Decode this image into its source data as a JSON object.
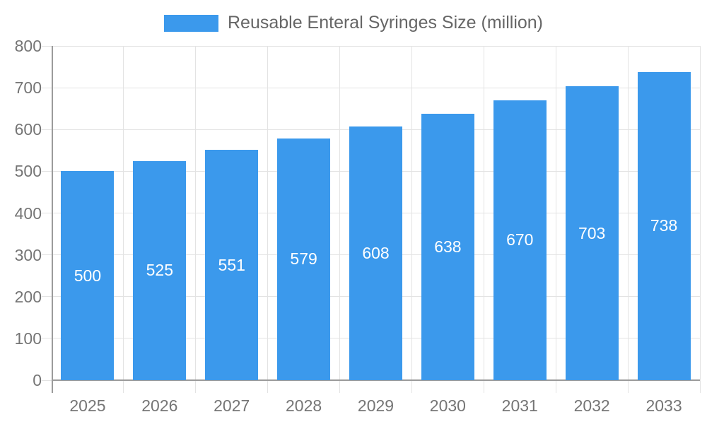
{
  "chart_data": {
    "type": "bar",
    "title": "Reusable Enteral Syringes Size (million)",
    "categories": [
      "2025",
      "2026",
      "2027",
      "2028",
      "2029",
      "2030",
      "2031",
      "2032",
      "2033"
    ],
    "values": [
      500,
      525,
      551,
      579,
      608,
      638,
      670,
      703,
      738
    ],
    "xlabel": "",
    "ylabel": "",
    "ylim": [
      0,
      800
    ],
    "ytick_step": 100,
    "grid": true,
    "legend_position": "top",
    "value_labels": "inside-center",
    "colors": {
      "bar": "#3B99EC",
      "value_label": "#FFFFFF",
      "grid": "#E3E3E3",
      "axis": "#9B9B9B",
      "tick_label": "#757575",
      "legend_text": "#666666",
      "background": "#FFFFFF"
    }
  }
}
